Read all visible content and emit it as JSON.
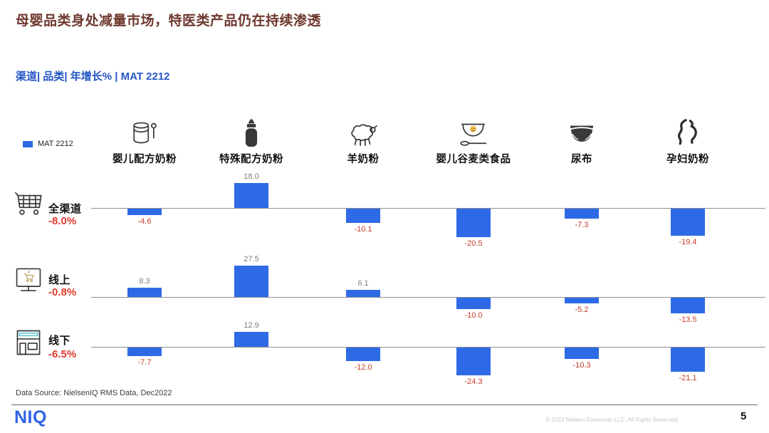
{
  "title": "母婴品类身处减量市场，特医类产品仍在持续渗透",
  "subtitle": "渠道| 品类| 年增长% | MAT 2212",
  "legend": {
    "label": "MAT 2212"
  },
  "chart_data": {
    "type": "bar",
    "title": "渠道| 品类| 年增长% | MAT 2212",
    "series_label": "MAT 2212",
    "unit": "年增长%",
    "bar_color": "#2e6ae6",
    "positive_label_color": "#7f7f7f",
    "negative_label_color": "#c43a2c",
    "categories": [
      "婴儿配方奶粉",
      "特殊配方奶粉",
      "羊奶粉",
      "婴儿谷麦类食品",
      "尿布",
      "孕妇奶粉"
    ],
    "category_icons": [
      "formula-can-icon",
      "baby-bottle-icon",
      "sheep-icon",
      "cereal-bowl-icon",
      "diaper-icon",
      "pregnant-woman-icon"
    ],
    "rows": [
      {
        "label": "全渠道",
        "total": "-8.0%",
        "icon": "shopping-cart-icon",
        "values": [
          -4.6,
          18.0,
          -10.1,
          -20.5,
          -7.3,
          -19.4
        ]
      },
      {
        "label": "线上",
        "total": "-0.8%",
        "icon": "online-monitor-icon",
        "values": [
          8.3,
          27.5,
          6.1,
          -10.0,
          -5.2,
          -13.5
        ]
      },
      {
        "label": "线下",
        "total": "-6.5%",
        "icon": "offline-store-icon",
        "values": [
          -7.7,
          12.9,
          -12.0,
          -24.3,
          -10.3,
          -21.1
        ]
      }
    ]
  },
  "footer": {
    "data_source": "Data Source: NielsenIQ RMS Data, Dec2022",
    "logo": "NIQ",
    "copyright": "© 2023 Nielsen Consumer LLC. All Rights Reserved.",
    "page_number": "5"
  },
  "colors": {
    "accent_blue": "#2456c6",
    "bar_blue": "#2e6ae6",
    "negative_red": "#c43a2c",
    "title_dark_red": "#6e392f"
  }
}
